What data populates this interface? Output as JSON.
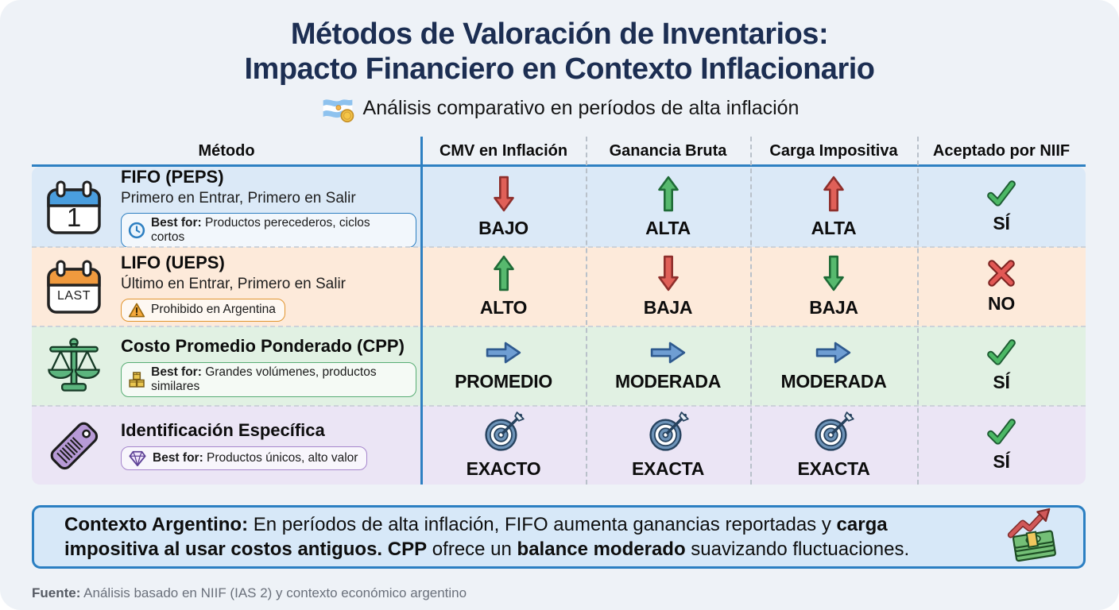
{
  "header": {
    "title_line1": "Métodos de Valoración de Inventarios:",
    "title_line2": "Impacto Financiero en Contexto Inflacionario",
    "subtitle": "Análisis comparativo en períodos de alta inflación",
    "subtitle_icon": "argentina-flag-icon"
  },
  "colors": {
    "accent_blue": "#2e80c2",
    "row_fifo_bg": "#dbe9f7",
    "row_lifo_bg": "#fdeada",
    "row_cpp_bg": "#e1f1e3",
    "row_id_bg": "#ebe5f5",
    "positive_green": "#57b96e",
    "negative_red": "#e06058",
    "neutral_blue": "#6f9ed3",
    "context_box_bg": "#d7e8f8",
    "title_navy": "#1c2e52"
  },
  "table": {
    "columns": [
      "Método",
      "CMV en Inflación",
      "Ganancia Bruta",
      "Carga Impositiva",
      "Aceptado por NIIF"
    ],
    "rows": [
      {
        "icon": "calendar-first-icon",
        "icon_label": "1",
        "title": "FIFO (PEPS)",
        "subtitle": "Primero en Entrar, Primero en Salir",
        "badge": {
          "icon": "clock-icon",
          "bold": "Best for:",
          "text": "Productos perecederos, ciclos cortos"
        },
        "cells": [
          {
            "icon": "arrow-down-red-icon",
            "label": "BAJO"
          },
          {
            "icon": "arrow-up-green-icon",
            "label": "ALTA"
          },
          {
            "icon": "arrow-up-red-icon",
            "label": "ALTA"
          },
          {
            "icon": "check-icon",
            "label": "SÍ"
          }
        ]
      },
      {
        "icon": "calendar-last-icon",
        "icon_label": "LAST",
        "title": "LIFO (UEPS)",
        "subtitle": "Último en Entrar, Primero en Salir",
        "badge": {
          "icon": "warning-icon",
          "bold": "",
          "text": "Prohibido en Argentina"
        },
        "cells": [
          {
            "icon": "arrow-up-green-icon",
            "label": "ALTO"
          },
          {
            "icon": "arrow-down-red-icon",
            "label": "BAJA"
          },
          {
            "icon": "arrow-down-green-icon",
            "label": "BAJA"
          },
          {
            "icon": "cross-icon",
            "label": "NO"
          }
        ]
      },
      {
        "icon": "scale-icon",
        "icon_label": "",
        "title": "Costo Promedio Ponderado (CPP)",
        "subtitle": "",
        "badge": {
          "icon": "boxes-icon",
          "bold": "Best for:",
          "text": "Grandes volúmenes, productos similares"
        },
        "cells": [
          {
            "icon": "arrow-right-blue-icon",
            "label": "PROMEDIO"
          },
          {
            "icon": "arrow-right-blue-icon",
            "label": "MODERADA"
          },
          {
            "icon": "arrow-right-blue-icon",
            "label": "MODERADA"
          },
          {
            "icon": "check-icon",
            "label": "SÍ"
          }
        ]
      },
      {
        "icon": "tag-icon",
        "icon_label": "",
        "title": "Identificación Específica",
        "subtitle": "",
        "badge": {
          "icon": "diamond-icon",
          "bold": "Best for:",
          "text": "Productos únicos, alto valor"
        },
        "cells": [
          {
            "icon": "target-icon",
            "label": "EXACTO"
          },
          {
            "icon": "target-icon",
            "label": "EXACTA"
          },
          {
            "icon": "target-icon",
            "label": "EXACTA"
          },
          {
            "icon": "check-icon",
            "label": "SÍ"
          }
        ]
      }
    ]
  },
  "context_box": {
    "icon": "money-growth-icon",
    "line1": [
      {
        "t": "Contexto Argentino:",
        "b": true
      },
      {
        "t": "  En períodos de alta inflación, FIFO aumenta ganancias reportadas y ",
        "b": false
      },
      {
        "t": "carga",
        "b": true
      }
    ],
    "line2": [
      {
        "t": "impositiva al usar costos antiguos.",
        "b": true
      },
      {
        "t": "  ",
        "b": false
      },
      {
        "t": "CPP",
        "b": true
      },
      {
        "t": " ofrece un  ",
        "b": false
      },
      {
        "t": "balance moderado",
        "b": true
      },
      {
        "t": " suavizando fluctuaciones.",
        "b": false
      }
    ]
  },
  "footer": {
    "bold": "Fuente:",
    "text": " Análisis basado en NIIF (IAS 2) y contexto económico argentino"
  }
}
